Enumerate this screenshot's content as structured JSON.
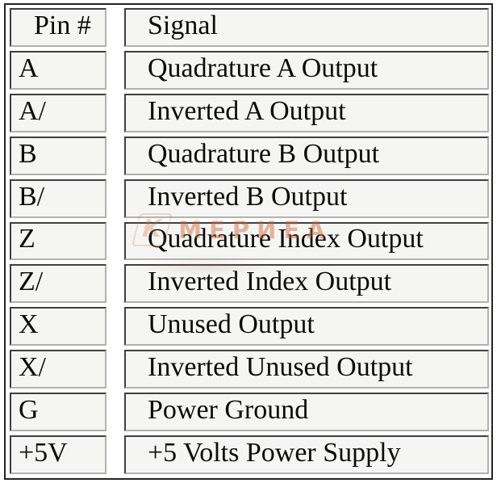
{
  "table": {
    "headers": [
      "Pin #",
      "Signal"
    ],
    "rows": [
      {
        "pin": "A",
        "signal": "Quadrature A Output"
      },
      {
        "pin": "A/",
        "signal": "Inverted A Output"
      },
      {
        "pin": "B",
        "signal": "Quadrature B Output"
      },
      {
        "pin": "B/",
        "signal": "Inverted B Output"
      },
      {
        "pin": "Z",
        "signal": "Quadrature Index Output"
      },
      {
        "pin": "Z/",
        "signal": "Inverted Index Output"
      },
      {
        "pin": "X",
        "signal": "Unused Output"
      },
      {
        "pin": "X/",
        "signal": "Inverted Unused Output"
      },
      {
        "pin": "G",
        "signal": "Power Ground"
      },
      {
        "pin": "+5V",
        "signal": "+5 Volts Power Supply"
      }
    ]
  },
  "watermark": {
    "logo_glyph": "K",
    "text": "МЕРИЕА"
  },
  "colors": {
    "page_background": "#ffffff",
    "cell_background": "#f5f5f3",
    "outer_border": "#242424",
    "cell_border_dark": "#3f3f3f",
    "cell_border_light": "#b1b1b1",
    "text": "#0c0c0c",
    "watermark_accent": "#d2693c"
  },
  "chart_data": {
    "type": "table",
    "title": "",
    "columns": [
      "Pin #",
      "Signal"
    ],
    "rows": [
      [
        "A",
        "Quadrature A Output"
      ],
      [
        "A/",
        "Inverted A Output"
      ],
      [
        "B",
        "Quadrature B Output"
      ],
      [
        "B/",
        "Inverted B Output"
      ],
      [
        "Z",
        "Quadrature Index Output"
      ],
      [
        "Z/",
        "Inverted Index Output"
      ],
      [
        "X",
        "Unused Output"
      ],
      [
        "X/",
        "Inverted Unused Output"
      ],
      [
        "G",
        "Power Ground"
      ],
      [
        "+5V",
        "+5 Volts Power Supply"
      ]
    ]
  }
}
